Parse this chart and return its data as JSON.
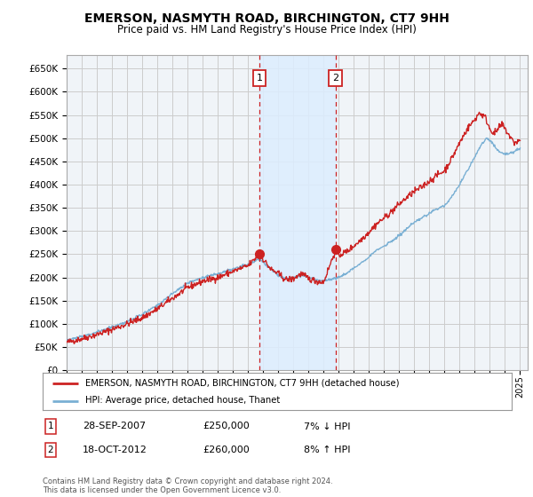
{
  "title": "EMERSON, NASMYTH ROAD, BIRCHINGTON, CT7 9HH",
  "subtitle": "Price paid vs. HM Land Registry's House Price Index (HPI)",
  "ylim": [
    0,
    680000
  ],
  "yticks": [
    0,
    50000,
    100000,
    150000,
    200000,
    250000,
    300000,
    350000,
    400000,
    450000,
    500000,
    550000,
    600000,
    650000
  ],
  "xlim_start": 1995.0,
  "xlim_end": 2025.5,
  "background_color": "#ffffff",
  "grid_color": "#cccccc",
  "plot_bg_color": "#f0f4f8",
  "hpi_line_color": "#7ab0d4",
  "price_line_color": "#cc2222",
  "sale1_x": 2007.75,
  "sale1_y": 250000,
  "sale2_x": 2012.8,
  "sale2_y": 260000,
  "sale1_label": "1",
  "sale2_label": "2",
  "sale1_date": "28-SEP-2007",
  "sale1_price": "£250,000",
  "sale1_hpi": "7% ↓ HPI",
  "sale2_date": "18-OCT-2012",
  "sale2_price": "£260,000",
  "sale2_hpi": "8% ↑ HPI",
  "legend_label1": "EMERSON, NASMYTH ROAD, BIRCHINGTON, CT7 9HH (detached house)",
  "legend_label2": "HPI: Average price, detached house, Thanet",
  "footnote": "Contains HM Land Registry data © Crown copyright and database right 2024.\nThis data is licensed under the Open Government Licence v3.0.",
  "shade_x1": 2007.75,
  "shade_x2": 2012.8
}
